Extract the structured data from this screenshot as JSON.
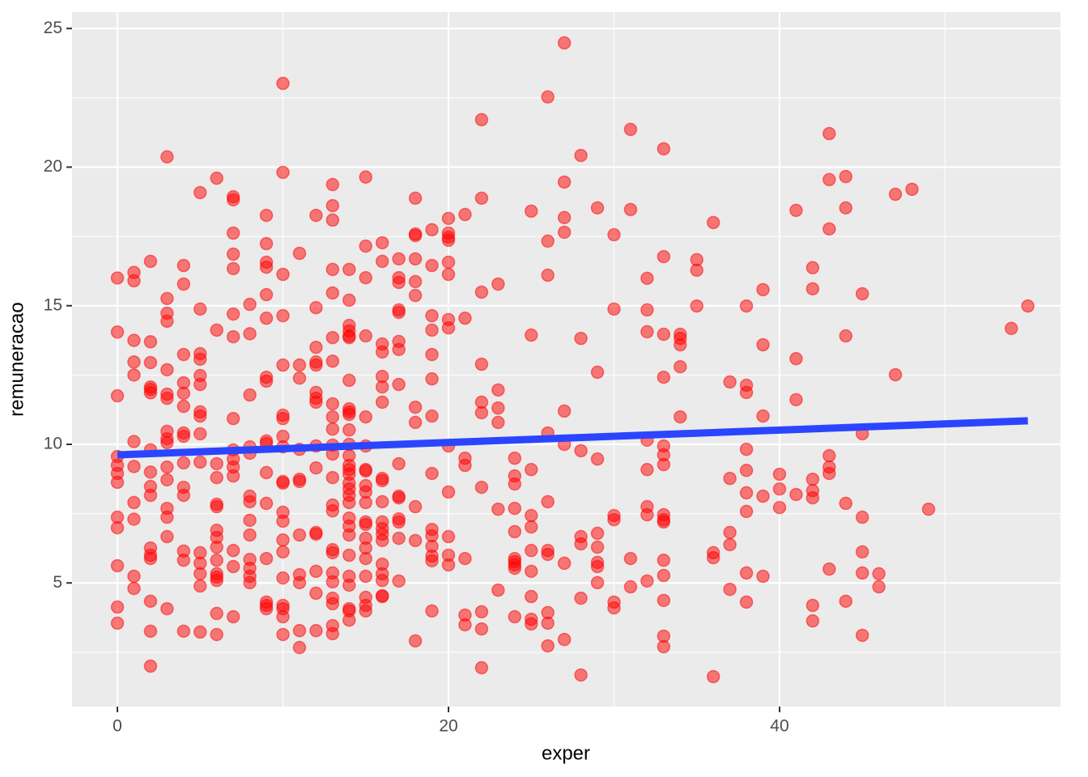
{
  "chart_data": {
    "type": "scatter",
    "xlabel": "exper",
    "ylabel": "remuneracao",
    "xlim": [
      -2.74,
      56.97
    ],
    "ylim": [
      0.54,
      25.59
    ],
    "xticks": [
      0,
      20,
      40
    ],
    "yticks": [
      5,
      10,
      15,
      20,
      25
    ],
    "xminor": [
      10,
      30,
      50
    ],
    "yminor": [
      2.5,
      7.5,
      12.5,
      17.5,
      22.5
    ],
    "grid": true,
    "color": "#ff0000",
    "trend": {
      "x": [
        0,
        55
      ],
      "y": [
        9.62,
        10.85
      ],
      "color": "#2b45ff"
    },
    "x": [
      0,
      0,
      0,
      0,
      0,
      0,
      0,
      0,
      0,
      0,
      0,
      0,
      1,
      1,
      1,
      1,
      1,
      1,
      1,
      1,
      1,
      1,
      1,
      2,
      2,
      2,
      2,
      2,
      2,
      2,
      2,
      2,
      2,
      2,
      2,
      2,
      2,
      2,
      2,
      3,
      3,
      3,
      3,
      3,
      3,
      3,
      3,
      3,
      3,
      3,
      3,
      3,
      3,
      3,
      3,
      4,
      4,
      4,
      4,
      4,
      4,
      4,
      4,
      4,
      4,
      4,
      4,
      4,
      4,
      5,
      5,
      5,
      5,
      5,
      5,
      5,
      5,
      5,
      5,
      5,
      5,
      5,
      5,
      5,
      6,
      6,
      6,
      6,
      6,
      6,
      6,
      6,
      6,
      6,
      6,
      6,
      6,
      6,
      6,
      7,
      7,
      7,
      7,
      7,
      7,
      7,
      7,
      7,
      7,
      7,
      7,
      7,
      7,
      7,
      8,
      8,
      8,
      8,
      8,
      8,
      8,
      8,
      8,
      8,
      8,
      8,
      8,
      9,
      9,
      9,
      9,
      9,
      9,
      9,
      9,
      9,
      9,
      9,
      9,
      9,
      9,
      9,
      9,
      10,
      10,
      10,
      10,
      10,
      10,
      10,
      10,
      10,
      10,
      10,
      10,
      10,
      10,
      10,
      10,
      10,
      10,
      10,
      10,
      11,
      11,
      11,
      11,
      11,
      11,
      11,
      11,
      11,
      11,
      11,
      12,
      12,
      12,
      12,
      12,
      12,
      12,
      12,
      12,
      12,
      12,
      12,
      12,
      12,
      12,
      13,
      13,
      13,
      13,
      13,
      13,
      13,
      13,
      13,
      13,
      13,
      13,
      13,
      13,
      13,
      13,
      13,
      13,
      13,
      13,
      13,
      13,
      13,
      14,
      14,
      14,
      14,
      14,
      14,
      14,
      14,
      14,
      14,
      14,
      14,
      14,
      14,
      14,
      14,
      14,
      14,
      14,
      14,
      14,
      14,
      14,
      14,
      14,
      14,
      14,
      14,
      14,
      15,
      15,
      15,
      15,
      15,
      15,
      15,
      15,
      15,
      15,
      15,
      15,
      15,
      15,
      15,
      15,
      15,
      15,
      15,
      15,
      16,
      16,
      16,
      16,
      16,
      16,
      16,
      16,
      16,
      16,
      16,
      16,
      16,
      16,
      16,
      16,
      16,
      16,
      16,
      17,
      17,
      17,
      17,
      17,
      17,
      17,
      17,
      17,
      17,
      17,
      17,
      17,
      17,
      17,
      18,
      18,
      18,
      18,
      18,
      18,
      18,
      18,
      18,
      18,
      18,
      19,
      19,
      19,
      19,
      19,
      19,
      19,
      19,
      19,
      19,
      19,
      19,
      19,
      19,
      20,
      20,
      20,
      20,
      20,
      20,
      20,
      20,
      20,
      20,
      20,
      20,
      20,
      21,
      21,
      21,
      21,
      21,
      21,
      21,
      22,
      22,
      22,
      22,
      22,
      22,
      22,
      22,
      22,
      22,
      23,
      23,
      23,
      23,
      23,
      23,
      24,
      24,
      24,
      24,
      24,
      24,
      24,
      24,
      24,
      24,
      25,
      25,
      25,
      25,
      25,
      25,
      25,
      25,
      25,
      25,
      26,
      26,
      26,
      26,
      26,
      26,
      26,
      26,
      26,
      26,
      27,
      27,
      27,
      27,
      27,
      27,
      27,
      27,
      28,
      28,
      28,
      28,
      28,
      28,
      28,
      29,
      29,
      29,
      29,
      29,
      29,
      29,
      29,
      30,
      30,
      30,
      30,
      30,
      30,
      31,
      31,
      31,
      31,
      32,
      32,
      32,
      32,
      32,
      32,
      32,
      32,
      33,
      33,
      33,
      33,
      33,
      33,
      33,
      33,
      33,
      33,
      33,
      33,
      33,
      33,
      33,
      34,
      34,
      34,
      34,
      34,
      35,
      35,
      35,
      36,
      36,
      36,
      36,
      37,
      37,
      37,
      37,
      37,
      38,
      38,
      38,
      38,
      38,
      38,
      38,
      38,
      38,
      39,
      39,
      39,
      39,
      39,
      40,
      40,
      40,
      41,
      41,
      41,
      41,
      42,
      42,
      42,
      42,
      42,
      42,
      42,
      43,
      43,
      43,
      43,
      43,
      43,
      43,
      44,
      44,
      44,
      44,
      44,
      45,
      45,
      45,
      45,
      45,
      45,
      46,
      46,
      47,
      47,
      48,
      49,
      54,
      55
    ],
    "values": [
      16.0,
      14.05,
      11.75,
      9.24,
      8.95,
      8.63,
      7.37,
      6.99,
      5.62,
      4.13,
      3.55,
      9.56,
      16.2,
      15.9,
      13.75,
      12.97,
      12.5,
      10.1,
      9.2,
      7.9,
      7.3,
      5.24,
      4.8,
      16.6,
      13.7,
      12.95,
      12.07,
      11.98,
      11.86,
      9.8,
      9.0,
      8.48,
      8.16,
      6.26,
      6.0,
      5.88,
      4.34,
      3.26,
      2.0,
      20.37,
      15.26,
      14.73,
      14.44,
      12.69,
      11.81,
      11.66,
      10.47,
      10.2,
      10.06,
      9.18,
      8.72,
      7.69,
      7.37,
      6.67,
      4.07,
      16.45,
      15.78,
      13.24,
      12.22,
      11.84,
      11.37,
      10.41,
      10.29,
      9.33,
      8.45,
      8.16,
      6.15,
      5.82,
      3.26,
      19.08,
      14.88,
      13.27,
      13.07,
      12.48,
      12.16,
      11.17,
      11.02,
      10.38,
      9.36,
      6.09,
      5.71,
      5.33,
      4.89,
      3.23,
      19.6,
      14.12,
      9.3,
      8.8,
      7.84,
      7.75,
      6.9,
      6.64,
      6.29,
      5.82,
      5.33,
      5.21,
      5.09,
      3.9,
      3.14,
      18.93,
      18.82,
      17.62,
      16.86,
      16.34,
      14.7,
      13.88,
      10.93,
      9.8,
      9.47,
      9.18,
      8.86,
      6.17,
      5.59,
      3.78,
      15.05,
      13.99,
      11.78,
      9.91,
      9.68,
      8.13,
      7.93,
      7.26,
      6.73,
      5.85,
      5.53,
      5.24,
      5.01,
      18.26,
      17.24,
      16.57,
      16.39,
      15.4,
      14.55,
      12.42,
      12.28,
      10.12,
      10.03,
      8.98,
      7.87,
      5.88,
      4.31,
      4.19,
      4.07,
      23.02,
      19.81,
      16.13,
      14.64,
      12.86,
      11.05,
      10.93,
      10.29,
      9.91,
      8.66,
      8.6,
      7.55,
      7.23,
      6.55,
      6.12,
      5.18,
      4.19,
      4.07,
      3.78,
      3.14,
      16.89,
      12.86,
      12.39,
      9.82,
      8.74,
      8.66,
      6.73,
      5.3,
      5.01,
      3.28,
      2.67,
      18.26,
      14.93,
      13.5,
      12.97,
      12.86,
      11.87,
      11.66,
      11.52,
      9.94,
      9.15,
      6.82,
      6.76,
      5.42,
      4.63,
      3.28,
      19.37,
      18.61,
      18.09,
      16.31,
      15.46,
      13.85,
      13.0,
      11.46,
      10.99,
      10.55,
      9.97,
      9.65,
      8.8,
      7.81,
      7.6,
      6.2,
      6.09,
      5.36,
      5.04,
      4.45,
      4.25,
      3.46,
      3.17,
      16.31,
      15.2,
      14.29,
      14.09,
      13.91,
      13.85,
      12.31,
      11.28,
      11.17,
      11.08,
      10.52,
      10.0,
      9.59,
      9.24,
      9.09,
      8.92,
      8.6,
      8.39,
      8.16,
      7.9,
      7.34,
      7.05,
      6.73,
      6.0,
      5.24,
      4.92,
      4.07,
      3.99,
      3.66,
      19.64,
      17.15,
      16.01,
      13.91,
      10.99,
      9.94,
      9.09,
      9.04,
      8.51,
      8.28,
      7.9,
      7.2,
      7.11,
      6.61,
      6.26,
      5.88,
      5.24,
      4.48,
      4.19,
      3.99,
      17.27,
      16.6,
      13.62,
      13.33,
      12.45,
      12.07,
      11.52,
      8.77,
      8.69,
      7.93,
      7.2,
      6.96,
      6.76,
      6.53,
      5.68,
      5.33,
      5.09,
      4.54,
      4.51,
      16.69,
      16.01,
      15.84,
      14.85,
      14.76,
      13.71,
      13.42,
      12.16,
      9.3,
      8.13,
      8.07,
      7.31,
      7.2,
      6.61,
      5.07,
      18.88,
      17.59,
      17.53,
      16.69,
      15.87,
      15.37,
      11.34,
      10.79,
      7.75,
      6.53,
      2.91,
      17.74,
      16.45,
      14.64,
      14.12,
      13.24,
      12.36,
      11.02,
      8.95,
      6.93,
      6.7,
      6.32,
      5.97,
      5.8,
      3.99,
      18.15,
      17.62,
      17.47,
      17.36,
      16.57,
      16.13,
      14.5,
      14.2,
      9.94,
      8.28,
      6.67,
      6.0,
      5.65,
      18.29,
      14.55,
      9.5,
      9.24,
      5.88,
      3.84,
      3.49,
      21.71,
      18.88,
      15.49,
      12.89,
      11.52,
      11.14,
      8.45,
      3.96,
      3.34,
      1.94,
      15.78,
      11.96,
      11.31,
      10.79,
      7.66,
      4.74,
      9.5,
      8.86,
      8.57,
      7.69,
      6.85,
      5.88,
      5.77,
      5.65,
      5.53,
      3.78,
      18.41,
      13.94,
      9.09,
      7.43,
      7.02,
      6.17,
      5.42,
      4.51,
      3.69,
      3.52,
      22.53,
      17.33,
      16.1,
      10.41,
      7.93,
      6.17,
      6.03,
      3.93,
      3.55,
      2.73,
      24.48,
      19.46,
      18.18,
      17.65,
      11.2,
      10.0,
      5.71,
      2.96,
      20.42,
      13.82,
      9.77,
      6.67,
      6.41,
      4.45,
      1.68,
      18.53,
      12.6,
      9.47,
      6.79,
      6.29,
      5.74,
      5.59,
      5.01,
      17.56,
      14.88,
      7.43,
      7.28,
      4.31,
      4.1,
      21.36,
      18.47,
      5.88,
      4.86,
      15.99,
      14.85,
      14.06,
      10.15,
      9.09,
      7.75,
      7.46,
      5.07,
      20.66,
      16.77,
      13.97,
      12.42,
      9.94,
      9.62,
      9.27,
      7.46,
      7.28,
      7.2,
      5.82,
      5.27,
      4.37,
      3.08,
      2.7,
      13.97,
      13.82,
      13.59,
      12.8,
      10.99,
      16.66,
      16.28,
      14.99,
      18.0,
      6.09,
      5.91,
      1.62,
      12.25,
      8.77,
      6.82,
      6.38,
      4.77,
      14.99,
      12.13,
      11.87,
      9.82,
      9.06,
      8.25,
      7.58,
      5.36,
      4.31,
      15.58,
      13.59,
      11.02,
      8.13,
      5.24,
      8.92,
      8.39,
      7.72,
      18.44,
      13.09,
      11.61,
      8.19,
      16.37,
      15.61,
      8.74,
      8.33,
      8.07,
      4.19,
      3.63,
      21.21,
      19.55,
      17.77,
      9.59,
      9.18,
      8.95,
      5.5,
      19.66,
      18.53,
      13.91,
      7.87,
      4.34,
      15.43,
      10.38,
      7.37,
      6.12,
      5.36,
      3.11,
      5.33,
      4.86,
      19.02,
      12.51,
      19.2,
      7.66,
      14.18,
      14.99
    ]
  }
}
